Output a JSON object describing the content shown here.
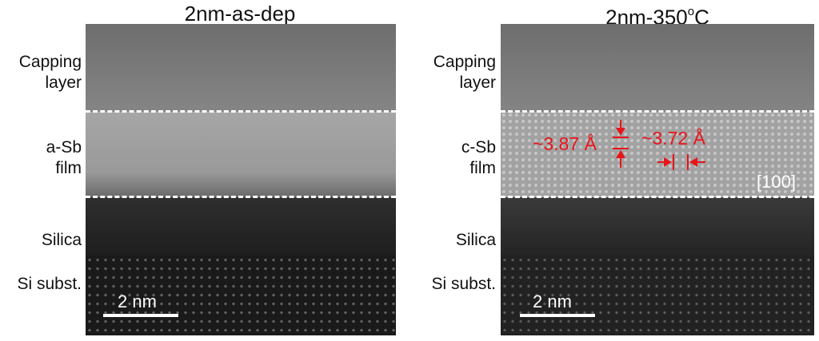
{
  "panels": [
    {
      "title": "2nm-as-dep",
      "labels": {
        "capping": [
          "Capping",
          "layer"
        ],
        "film": [
          "a-Sb",
          "film"
        ],
        "silica": "Silica",
        "substrate": "Si subst."
      },
      "scale_bar": "2 nm"
    },
    {
      "title_main": "2nm-350",
      "title_sup": "o",
      "title_tail": "C",
      "labels": {
        "capping": [
          "Capping",
          "layer"
        ],
        "film": [
          "c-Sb",
          "film"
        ],
        "silica": "Silica",
        "substrate": "Si subst."
      },
      "scale_bar": "2 nm",
      "annotations": {
        "vertical_spacing": "~3.87 Å",
        "horizontal_spacing": "~3.72 Å",
        "zone_axis": "[100]"
      },
      "annotation_color": "#e8141a"
    }
  ]
}
